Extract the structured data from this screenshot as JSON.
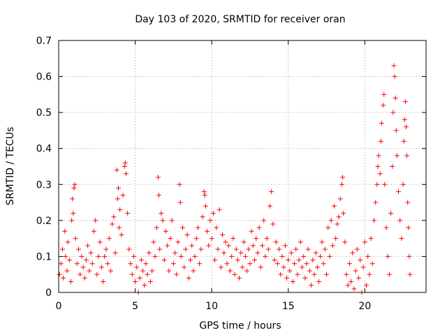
{
  "chart_data": {
    "type": "scatter",
    "title": "Day 103 of 2020, SRMTID for receiver oran",
    "xlabel": "GPS time / hours",
    "ylabel": "SRMTID / TECUs",
    "xlim": [
      0,
      24
    ],
    "ylim": [
      0,
      0.7
    ],
    "xticks": [
      0,
      5,
      10,
      15,
      20
    ],
    "yticks": [
      0,
      0.1,
      0.2,
      0.3,
      0.4,
      0.5,
      0.6,
      0.7
    ],
    "grid": true,
    "marker": "+",
    "color": "#ff0000",
    "series": [
      {
        "name": "SRMTID",
        "points": [
          [
            0.05,
            0.05
          ],
          [
            0.15,
            0.08
          ],
          [
            0.25,
            0.12
          ],
          [
            0.3,
            0.04
          ],
          [
            0.4,
            0.17
          ],
          [
            0.45,
            0.1
          ],
          [
            0.55,
            0.06
          ],
          [
            0.6,
            0.14
          ],
          [
            0.7,
            0.09
          ],
          [
            0.8,
            0.03
          ],
          [
            0.85,
            0.2
          ],
          [
            0.9,
            0.26
          ],
          [
            0.95,
            0.22
          ],
          [
            1.0,
            0.29
          ],
          [
            1.05,
            0.3
          ],
          [
            1.1,
            0.15
          ],
          [
            1.2,
            0.08
          ],
          [
            1.3,
            0.12
          ],
          [
            1.4,
            0.05
          ],
          [
            1.5,
            0.1
          ],
          [
            1.6,
            0.07
          ],
          [
            1.7,
            0.04
          ],
          [
            1.8,
            0.09
          ],
          [
            1.9,
            0.13
          ],
          [
            2.0,
            0.06
          ],
          [
            2.1,
            0.11
          ],
          [
            2.2,
            0.08
          ],
          [
            2.3,
            0.17
          ],
          [
            2.4,
            0.2
          ],
          [
            2.5,
            0.05
          ],
          [
            2.6,
            0.1
          ],
          [
            2.7,
            0.14
          ],
          [
            2.8,
            0.07
          ],
          [
            2.9,
            0.03
          ],
          [
            3.0,
            0.1
          ],
          [
            3.1,
            0.12
          ],
          [
            3.2,
            0.08
          ],
          [
            3.3,
            0.15
          ],
          [
            3.4,
            0.06
          ],
          [
            3.5,
            0.19
          ],
          [
            3.6,
            0.21
          ],
          [
            3.7,
            0.11
          ],
          [
            3.8,
            0.34
          ],
          [
            3.85,
            0.26
          ],
          [
            3.9,
            0.29
          ],
          [
            3.95,
            0.18
          ],
          [
            4.0,
            0.23
          ],
          [
            4.1,
            0.16
          ],
          [
            4.2,
            0.27
          ],
          [
            4.3,
            0.35
          ],
          [
            4.35,
            0.36
          ],
          [
            4.4,
            0.33
          ],
          [
            4.5,
            0.22
          ],
          [
            4.6,
            0.12
          ],
          [
            4.7,
            0.08
          ],
          [
            4.8,
            0.05
          ],
          [
            4.9,
            0.1
          ],
          [
            5.0,
            0.03
          ],
          [
            5.1,
            0.07
          ],
          [
            5.2,
            0.0
          ],
          [
            5.3,
            0.04
          ],
          [
            5.4,
            0.09
          ],
          [
            5.5,
            0.06
          ],
          [
            5.6,
            0.02
          ],
          [
            5.7,
            0.08
          ],
          [
            5.8,
            0.05
          ],
          [
            5.9,
            0.11
          ],
          [
            6.0,
            0.03
          ],
          [
            6.1,
            0.06
          ],
          [
            6.2,
            0.14
          ],
          [
            6.3,
            0.1
          ],
          [
            6.4,
            0.18
          ],
          [
            6.5,
            0.32
          ],
          [
            6.55,
            0.27
          ],
          [
            6.6,
            0.12
          ],
          [
            6.7,
            0.22
          ],
          [
            6.8,
            0.2
          ],
          [
            6.9,
            0.09
          ],
          [
            7.0,
            0.17
          ],
          [
            7.1,
            0.13
          ],
          [
            7.2,
            0.06
          ],
          [
            7.3,
            0.15
          ],
          [
            7.4,
            0.2
          ],
          [
            7.5,
            0.08
          ],
          [
            7.6,
            0.11
          ],
          [
            7.7,
            0.05
          ],
          [
            7.8,
            0.14
          ],
          [
            7.9,
            0.3
          ],
          [
            7.95,
            0.25
          ],
          [
            8.0,
            0.1
          ],
          [
            8.1,
            0.18
          ],
          [
            8.2,
            0.07
          ],
          [
            8.3,
            0.12
          ],
          [
            8.4,
            0.16
          ],
          [
            8.5,
            0.04
          ],
          [
            8.6,
            0.09
          ],
          [
            8.7,
            0.13
          ],
          [
            8.8,
            0.06
          ],
          [
            8.9,
            0.1
          ],
          [
            9.0,
            0.15
          ],
          [
            9.1,
            0.18
          ],
          [
            9.2,
            0.08
          ],
          [
            9.3,
            0.12
          ],
          [
            9.4,
            0.21
          ],
          [
            9.5,
            0.28
          ],
          [
            9.55,
            0.27
          ],
          [
            9.6,
            0.24
          ],
          [
            9.7,
            0.17
          ],
          [
            9.8,
            0.13
          ],
          [
            9.9,
            0.2
          ],
          [
            10.0,
            0.15
          ],
          [
            10.1,
            0.22
          ],
          [
            10.2,
            0.09
          ],
          [
            10.3,
            0.18
          ],
          [
            10.4,
            0.12
          ],
          [
            10.5,
            0.23
          ],
          [
            10.6,
            0.07
          ],
          [
            10.7,
            0.16
          ],
          [
            10.8,
            0.11
          ],
          [
            10.9,
            0.14
          ],
          [
            11.0,
            0.08
          ],
          [
            11.1,
            0.13
          ],
          [
            11.2,
            0.06
          ],
          [
            11.3,
            0.1
          ],
          [
            11.4,
            0.15
          ],
          [
            11.5,
            0.05
          ],
          [
            11.6,
            0.12
          ],
          [
            11.7,
            0.09
          ],
          [
            11.8,
            0.04
          ],
          [
            11.9,
            0.11
          ],
          [
            12.0,
            0.07
          ],
          [
            12.1,
            0.14
          ],
          [
            12.2,
            0.1
          ],
          [
            12.3,
            0.06
          ],
          [
            12.4,
            0.12
          ],
          [
            12.5,
            0.08
          ],
          [
            12.6,
            0.17
          ],
          [
            12.7,
            0.13
          ],
          [
            12.8,
            0.09
          ],
          [
            12.9,
            0.15
          ],
          [
            13.0,
            0.11
          ],
          [
            13.1,
            0.18
          ],
          [
            13.2,
            0.07
          ],
          [
            13.3,
            0.13
          ],
          [
            13.4,
            0.2
          ],
          [
            13.5,
            0.1
          ],
          [
            13.6,
            0.15
          ],
          [
            13.7,
            0.12
          ],
          [
            13.8,
            0.24
          ],
          [
            13.9,
            0.28
          ],
          [
            14.0,
            0.19
          ],
          [
            14.1,
            0.09
          ],
          [
            14.2,
            0.14
          ],
          [
            14.3,
            0.08
          ],
          [
            14.4,
            0.12
          ],
          [
            14.5,
            0.05
          ],
          [
            14.6,
            0.1
          ],
          [
            14.7,
            0.07
          ],
          [
            14.8,
            0.13
          ],
          [
            14.9,
            0.04
          ],
          [
            15.0,
            0.09
          ],
          [
            15.1,
            0.06
          ],
          [
            15.2,
            0.11
          ],
          [
            15.3,
            0.03
          ],
          [
            15.4,
            0.08
          ],
          [
            15.5,
            0.12
          ],
          [
            15.6,
            0.05
          ],
          [
            15.7,
            0.09
          ],
          [
            15.8,
            0.14
          ],
          [
            15.9,
            0.07
          ],
          [
            16.0,
            0.1
          ],
          [
            16.1,
            0.04
          ],
          [
            16.2,
            0.08
          ],
          [
            16.3,
            0.12
          ],
          [
            16.4,
            0.06
          ],
          [
            16.5,
            0.02
          ],
          [
            16.6,
            0.09
          ],
          [
            16.7,
            0.05
          ],
          [
            16.8,
            0.11
          ],
          [
            16.9,
            0.07
          ],
          [
            17.0,
            0.03
          ],
          [
            17.1,
            0.1
          ],
          [
            17.2,
            0.14
          ],
          [
            17.3,
            0.08
          ],
          [
            17.4,
            0.12
          ],
          [
            17.5,
            0.05
          ],
          [
            17.6,
            0.18
          ],
          [
            17.7,
            0.1
          ],
          [
            17.8,
            0.2
          ],
          [
            17.9,
            0.13
          ],
          [
            18.0,
            0.24
          ],
          [
            18.1,
            0.15
          ],
          [
            18.2,
            0.19
          ],
          [
            18.3,
            0.21
          ],
          [
            18.4,
            0.26
          ],
          [
            18.5,
            0.3
          ],
          [
            18.55,
            0.32
          ],
          [
            18.6,
            0.22
          ],
          [
            18.7,
            0.14
          ],
          [
            18.8,
            0.05
          ],
          [
            18.9,
            0.02
          ],
          [
            19.0,
            0.08
          ],
          [
            19.1,
            0.03
          ],
          [
            19.2,
            0.11
          ],
          [
            19.3,
            0.01
          ],
          [
            19.4,
            0.06
          ],
          [
            19.5,
            0.12
          ],
          [
            19.6,
            0.04
          ],
          [
            19.7,
            0.09
          ],
          [
            19.8,
            0.0
          ],
          [
            19.9,
            0.07
          ],
          [
            20.0,
            0.14
          ],
          [
            20.1,
            0.02
          ],
          [
            20.2,
            0.1
          ],
          [
            20.3,
            0.05
          ],
          [
            20.4,
            0.15
          ],
          [
            20.5,
            0.08
          ],
          [
            20.6,
            0.2
          ],
          [
            20.7,
            0.25
          ],
          [
            20.8,
            0.3
          ],
          [
            20.85,
            0.35
          ],
          [
            20.9,
            0.38
          ],
          [
            21.0,
            0.33
          ],
          [
            21.05,
            0.42
          ],
          [
            21.1,
            0.47
          ],
          [
            21.2,
            0.52
          ],
          [
            21.25,
            0.55
          ],
          [
            21.3,
            0.3
          ],
          [
            21.4,
            0.18
          ],
          [
            21.5,
            0.1
          ],
          [
            21.6,
            0.05
          ],
          [
            21.7,
            0.22
          ],
          [
            21.8,
            0.35
          ],
          [
            21.85,
            0.5
          ],
          [
            21.9,
            0.63
          ],
          [
            21.95,
            0.6
          ],
          [
            22.0,
            0.54
          ],
          [
            22.05,
            0.45
          ],
          [
            22.1,
            0.38
          ],
          [
            22.2,
            0.28
          ],
          [
            22.3,
            0.2
          ],
          [
            22.4,
            0.15
          ],
          [
            22.5,
            0.3
          ],
          [
            22.55,
            0.42
          ],
          [
            22.6,
            0.48
          ],
          [
            22.65,
            0.53
          ],
          [
            22.7,
            0.46
          ],
          [
            22.75,
            0.38
          ],
          [
            22.8,
            0.25
          ],
          [
            22.85,
            0.18
          ],
          [
            22.9,
            0.1
          ],
          [
            22.95,
            0.05
          ]
        ]
      }
    ]
  }
}
